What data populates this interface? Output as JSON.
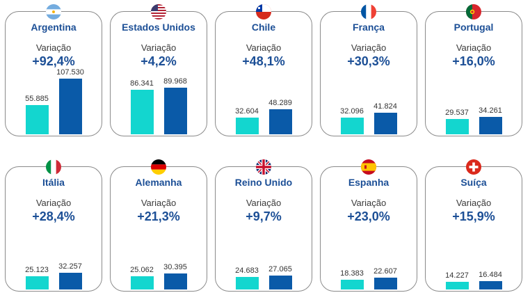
{
  "colors": {
    "previous": "#13d6cf",
    "current": "#0a5aa8",
    "text_accent": "#1c4f96",
    "card_border": "#8a8a8a"
  },
  "chart_data": [
    {
      "type": "bar",
      "country": "Argentina",
      "flag": "argentina-flag-icon",
      "variation_label": "Variação",
      "variation": "+92,4%",
      "values": [
        55885,
        107530
      ],
      "value_labels": [
        "55.885",
        "107.530"
      ]
    },
    {
      "type": "bar",
      "country": "Estados Unidos",
      "flag": "usa-flag-icon",
      "variation_label": "Variação",
      "variation": "+4,2%",
      "values": [
        86341,
        89968
      ],
      "value_labels": [
        "86.341",
        "89.968"
      ]
    },
    {
      "type": "bar",
      "country": "Chile",
      "flag": "chile-flag-icon",
      "variation_label": "Variação",
      "variation": "+48,1%",
      "values": [
        32604,
        48289
      ],
      "value_labels": [
        "32.604",
        "48.289"
      ]
    },
    {
      "type": "bar",
      "country": "França",
      "flag": "france-flag-icon",
      "variation_label": "Variação",
      "variation": "+30,3%",
      "values": [
        32096,
        41824
      ],
      "value_labels": [
        "32.096",
        "41.824"
      ]
    },
    {
      "type": "bar",
      "country": "Portugal",
      "flag": "portugal-flag-icon",
      "variation_label": "Variação",
      "variation": "+16,0%",
      "values": [
        29537,
        34261
      ],
      "value_labels": [
        "29.537",
        "34.261"
      ]
    },
    {
      "type": "bar",
      "country": "Itália",
      "flag": "italy-flag-icon",
      "variation_label": "Variação",
      "variation": "+28,4%",
      "values": [
        25123,
        32257
      ],
      "value_labels": [
        "25.123",
        "32.257"
      ]
    },
    {
      "type": "bar",
      "country": "Alemanha",
      "flag": "germany-flag-icon",
      "variation_label": "Variação",
      "variation": "+21,3%",
      "values": [
        25062,
        30395
      ],
      "value_labels": [
        "25.062",
        "30.395"
      ]
    },
    {
      "type": "bar",
      "country": "Reino Unido",
      "flag": "uk-flag-icon",
      "variation_label": "Variação",
      "variation": "+9,7%",
      "values": [
        24683,
        27065
      ],
      "value_labels": [
        "24.683",
        "27.065"
      ]
    },
    {
      "type": "bar",
      "country": "Espanha",
      "flag": "spain-flag-icon",
      "variation_label": "Variação",
      "variation": "+23,0%",
      "values": [
        18383,
        22607
      ],
      "value_labels": [
        "18.383",
        "22.607"
      ]
    },
    {
      "type": "bar",
      "country": "Suíça",
      "flag": "switzerland-flag-icon",
      "variation_label": "Variação",
      "variation": "+15,9%",
      "values": [
        14227,
        16484
      ],
      "value_labels": [
        "14.227",
        "16.484"
      ]
    }
  ]
}
